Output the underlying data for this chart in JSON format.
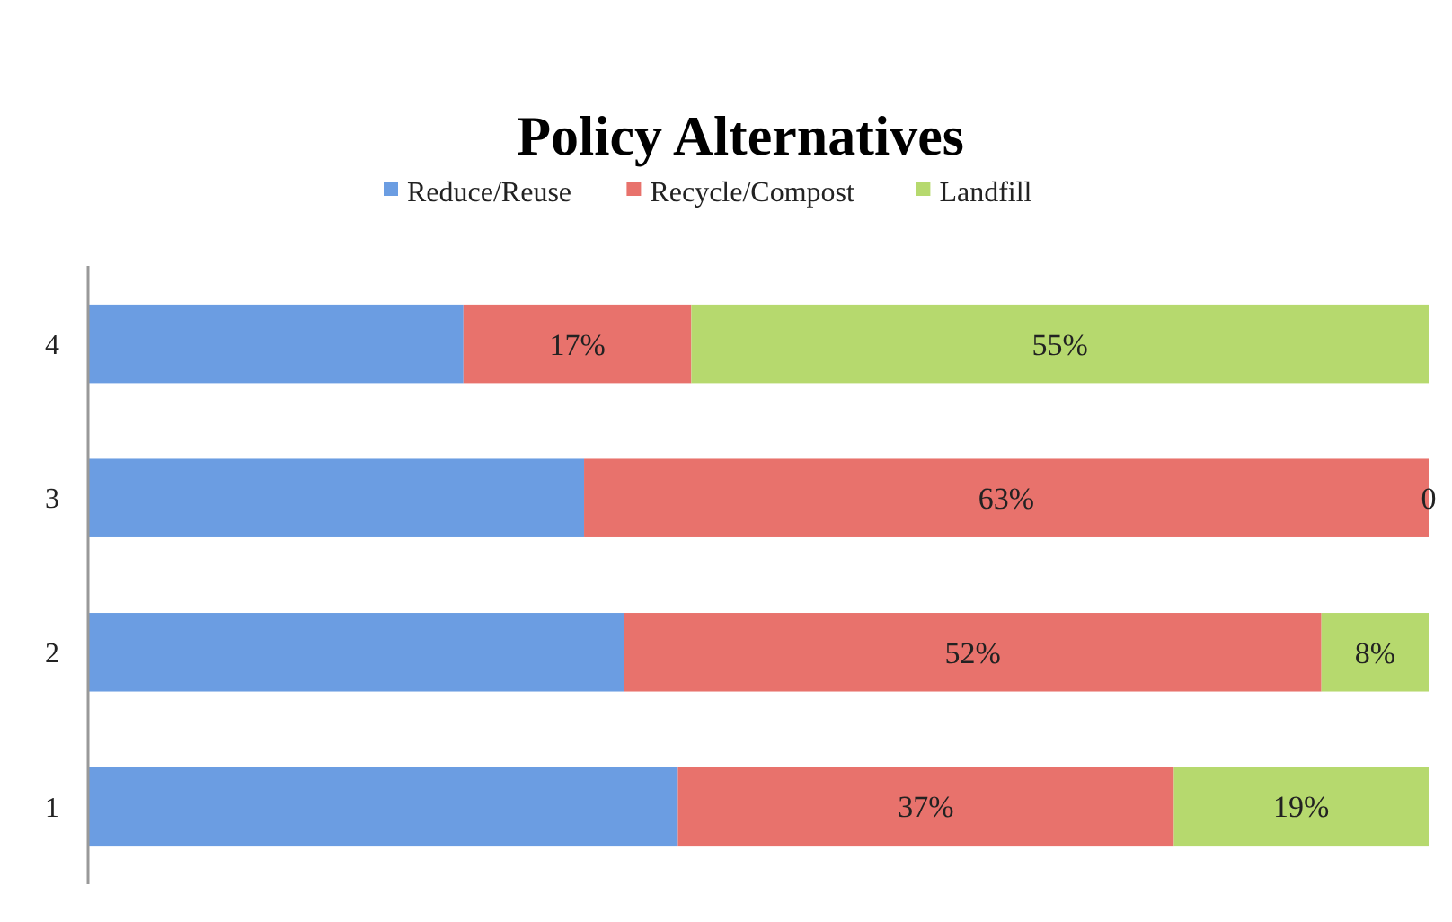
{
  "chart_data": {
    "type": "bar",
    "title": "Policy Alternatives",
    "orientation": "horizontal",
    "stacked": true,
    "categories": [
      "4",
      "3",
      "2",
      "1"
    ],
    "xlim": [
      0,
      100
    ],
    "tick_labels": "y",
    "legend": "top",
    "grid": false,
    "series": [
      {
        "name": "Reduce/Reuse",
        "color": "#6b9de2",
        "values": [
          28,
          37,
          40,
          44
        ],
        "value_labels": [
          null,
          null,
          null,
          null
        ]
      },
      {
        "name": "Recycle/Compost",
        "color": "#e8726c",
        "values": [
          17,
          63,
          52,
          37
        ],
        "value_labels": [
          "17%",
          "63%",
          "52%",
          "37%"
        ]
      },
      {
        "name": "Landfill",
        "color": "#b6d96e",
        "values": [
          55,
          0,
          8,
          19
        ],
        "value_labels": [
          "55%",
          "0",
          "8%",
          "19%"
        ]
      }
    ]
  }
}
